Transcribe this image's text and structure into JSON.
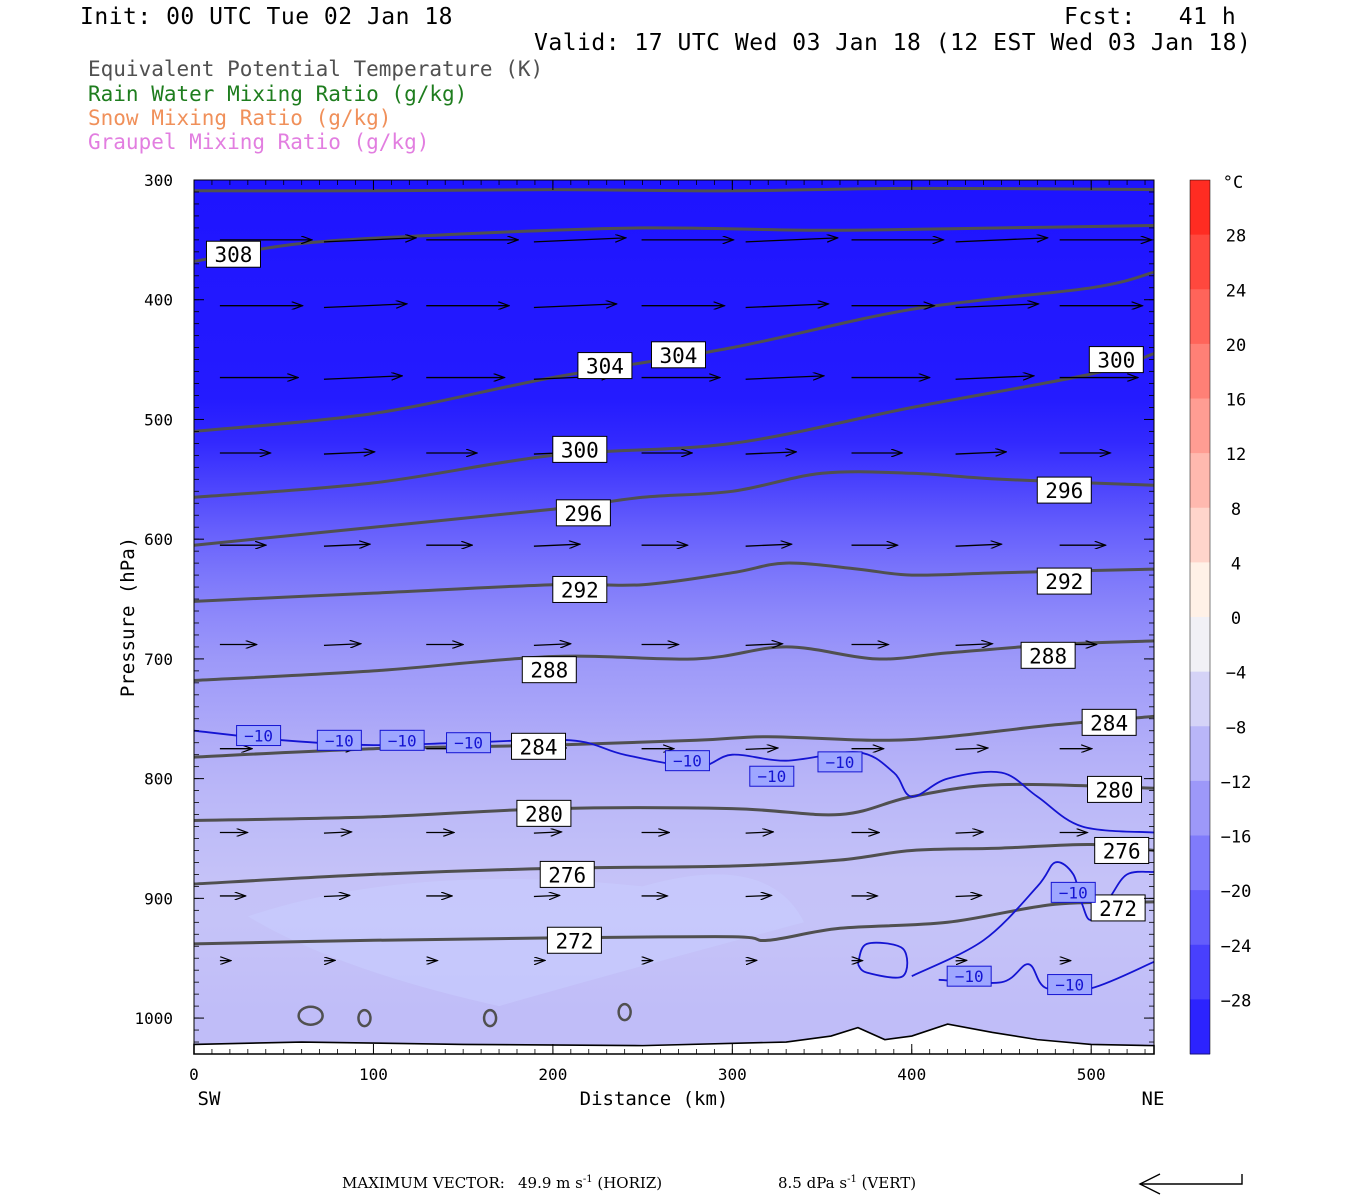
{
  "header": {
    "init": "Init: 00 UTC Tue 02 Jan 18",
    "fcst": "Fcst:   41 h",
    "valid": "Valid: 17 UTC Wed 03 Jan 18 (12 EST Wed 03 Jan 18)"
  },
  "legend": {
    "theta_e": {
      "label": "Equivalent Potential Temperature (K)",
      "color": "#505050"
    },
    "rain": {
      "label": "Rain Water Mixing Ratio (g/kg)",
      "color": "#1e7d1e"
    },
    "snow": {
      "label": "Snow Mixing Ratio (g/kg)",
      "color": "#f0905a"
    },
    "graupel": {
      "label": "Graupel Mixing Ratio (g/kg)",
      "color": "#e27ee0"
    }
  },
  "footer": {
    "max_vector_label": "MAXIMUM VECTOR:",
    "horiz_value": "49.9 m s",
    "horiz_unit": " (HORIZ)",
    "vert_value": "8.5 dPa s",
    "vert_unit": " (VERT)",
    "exponent": "-1"
  },
  "chart_data": {
    "type": "cross-section",
    "xlabel": "Distance (km)",
    "ylabel": "Pressure (hPa)",
    "x_left_label": "SW",
    "x_right_label": "NE",
    "xlim": [
      0,
      535
    ],
    "ylim": [
      1030,
      300
    ],
    "xticks": [
      0,
      100,
      200,
      300,
      400,
      500
    ],
    "yticks": [
      300,
      400,
      500,
      600,
      700,
      800,
      900,
      1000
    ],
    "colorbar": {
      "unit": "°C",
      "range": [
        -32,
        32
      ],
      "tick_labels": [
        28,
        24,
        20,
        16,
        12,
        8,
        4,
        0,
        -4,
        -8,
        -12,
        -16,
        -20,
        -24,
        -28
      ]
    },
    "temperature_fill_by_pressure": [
      {
        "p": 300,
        "t": -32
      },
      {
        "p": 500,
        "t": -31
      },
      {
        "p": 550,
        "t": -26
      },
      {
        "p": 600,
        "t": -21
      },
      {
        "p": 650,
        "t": -17
      },
      {
        "p": 700,
        "t": -14
      },
      {
        "p": 800,
        "t": -10
      },
      {
        "p": 900,
        "t": -8
      },
      {
        "p": 1000,
        "t": -9
      }
    ],
    "theta_e_contours": [
      {
        "level": 308,
        "points": [
          [
            0,
            309
          ],
          [
            100,
            309
          ],
          [
            200,
            308
          ],
          [
            300,
            309
          ],
          [
            400,
            307
          ],
          [
            535,
            308
          ]
        ]
      },
      {
        "level": 308,
        "points": [
          [
            0,
            368
          ],
          [
            60,
            353
          ],
          [
            150,
            345
          ],
          [
            250,
            340
          ],
          [
            350,
            342
          ],
          [
            450,
            340
          ],
          [
            535,
            338
          ]
        ]
      },
      {
        "level": 304,
        "points": [
          [
            0,
            510
          ],
          [
            100,
            495
          ],
          [
            200,
            465
          ],
          [
            300,
            440
          ],
          [
            400,
            408
          ],
          [
            500,
            390
          ],
          [
            535,
            377
          ]
        ]
      },
      {
        "level": 300,
        "points": [
          [
            0,
            565
          ],
          [
            100,
            553
          ],
          [
            200,
            530
          ],
          [
            300,
            520
          ],
          [
            400,
            490
          ],
          [
            500,
            462
          ],
          [
            535,
            445
          ]
        ]
      },
      {
        "level": 296,
        "points": [
          [
            0,
            605
          ],
          [
            100,
            590
          ],
          [
            200,
            575
          ],
          [
            250,
            565
          ],
          [
            300,
            560
          ],
          [
            350,
            545
          ],
          [
            400,
            545
          ],
          [
            450,
            550
          ],
          [
            535,
            555
          ]
        ]
      },
      {
        "level": 292,
        "points": [
          [
            0,
            652
          ],
          [
            100,
            645
          ],
          [
            200,
            638
          ],
          [
            250,
            638
          ],
          [
            300,
            628
          ],
          [
            330,
            620
          ],
          [
            370,
            625
          ],
          [
            400,
            630
          ],
          [
            450,
            628
          ],
          [
            535,
            625
          ]
        ]
      },
      {
        "level": 288,
        "points": [
          [
            0,
            718
          ],
          [
            100,
            710
          ],
          [
            200,
            698
          ],
          [
            280,
            700
          ],
          [
            330,
            690
          ],
          [
            380,
            700
          ],
          [
            420,
            695
          ],
          [
            480,
            688
          ],
          [
            535,
            685
          ]
        ]
      },
      {
        "level": 284,
        "points": [
          [
            0,
            782
          ],
          [
            100,
            775
          ],
          [
            200,
            772
          ],
          [
            280,
            768
          ],
          [
            320,
            765
          ],
          [
            380,
            768
          ],
          [
            420,
            765
          ],
          [
            480,
            755
          ],
          [
            535,
            748
          ]
        ]
      },
      {
        "level": 280,
        "points": [
          [
            0,
            835
          ],
          [
            100,
            832
          ],
          [
            200,
            825
          ],
          [
            300,
            825
          ],
          [
            360,
            830
          ],
          [
            400,
            815
          ],
          [
            450,
            805
          ],
          [
            535,
            808
          ]
        ]
      },
      {
        "level": 276,
        "points": [
          [
            0,
            888
          ],
          [
            100,
            880
          ],
          [
            200,
            875
          ],
          [
            300,
            873
          ],
          [
            360,
            868
          ],
          [
            400,
            860
          ],
          [
            450,
            858
          ],
          [
            500,
            855
          ],
          [
            535,
            860
          ]
        ]
      },
      {
        "level": 272,
        "points": [
          [
            0,
            938
          ],
          [
            100,
            935
          ],
          [
            200,
            933
          ],
          [
            300,
            932
          ],
          [
            320,
            935
          ],
          [
            360,
            925
          ],
          [
            420,
            920
          ],
          [
            480,
            905
          ],
          [
            535,
            903
          ]
        ]
      }
    ],
    "theta_e_labels": [
      {
        "text": "308",
        "x": 22,
        "p": 362
      },
      {
        "text": "304",
        "x": 229,
        "p": 455
      },
      {
        "text": "304",
        "x": 270,
        "p": 446
      },
      {
        "text": "300",
        "x": 514,
        "p": 450
      },
      {
        "text": "300",
        "x": 215,
        "p": 525
      },
      {
        "text": "296",
        "x": 217,
        "p": 578
      },
      {
        "text": "296",
        "x": 485,
        "p": 559
      },
      {
        "text": "292",
        "x": 215,
        "p": 642
      },
      {
        "text": "292",
        "x": 485,
        "p": 635
      },
      {
        "text": "288",
        "x": 198,
        "p": 709
      },
      {
        "text": "288",
        "x": 476,
        "p": 697
      },
      {
        "text": "284",
        "x": 192,
        "p": 773
      },
      {
        "text": "284",
        "x": 510,
        "p": 753
      },
      {
        "text": "280",
        "x": 195,
        "p": 829
      },
      {
        "text": "280",
        "x": 513,
        "p": 809
      },
      {
        "text": "276",
        "x": 208,
        "p": 880
      },
      {
        "text": "276",
        "x": 517,
        "p": 860
      },
      {
        "text": "272",
        "x": 212,
        "p": 935
      },
      {
        "text": "272",
        "x": 515,
        "p": 908
      }
    ],
    "isotherm_minus10": {
      "level": -10,
      "points": [
        [
          0,
          760
        ],
        [
          50,
          768
        ],
        [
          100,
          772
        ],
        [
          150,
          770
        ],
        [
          210,
          768
        ],
        [
          240,
          780
        ],
        [
          280,
          790
        ],
        [
          300,
          780
        ],
        [
          330,
          785
        ],
        [
          370,
          778
        ],
        [
          390,
          795
        ],
        [
          400,
          815
        ],
        [
          420,
          800
        ],
        [
          450,
          795
        ],
        [
          470,
          815
        ],
        [
          495,
          840
        ],
        [
          535,
          845
        ]
      ],
      "labels": [
        {
          "text": "−10",
          "x": 36,
          "p": 764
        },
        {
          "text": "−10",
          "x": 81,
          "p": 768
        },
        {
          "text": "−10",
          "x": 116,
          "p": 768
        },
        {
          "text": "−10",
          "x": 153,
          "p": 770
        },
        {
          "text": "−10",
          "x": 275,
          "p": 785
        },
        {
          "text": "−10",
          "x": 322,
          "p": 798
        },
        {
          "text": "−10",
          "x": 360,
          "p": 786
        },
        {
          "text": "−10",
          "x": 490,
          "p": 895
        },
        {
          "text": "−10",
          "x": 432,
          "p": 965
        },
        {
          "text": "−10",
          "x": 488,
          "p": 972
        }
      ]
    },
    "wind_arrow_rows": [
      {
        "p": 350,
        "length": 1.0
      },
      {
        "p": 405,
        "length": 0.9
      },
      {
        "p": 465,
        "length": 0.85
      },
      {
        "p": 528,
        "length": 0.55
      },
      {
        "p": 605,
        "length": 0.5
      },
      {
        "p": 688,
        "length": 0.4
      },
      {
        "p": 775,
        "length": 0.35
      },
      {
        "p": 845,
        "length": 0.3
      },
      {
        "p": 898,
        "length": 0.28
      },
      {
        "p": 952,
        "length": 0.12
      }
    ],
    "wind_arrow_x": [
      20,
      78,
      135,
      195,
      255,
      313,
      372,
      430,
      488
    ]
  }
}
